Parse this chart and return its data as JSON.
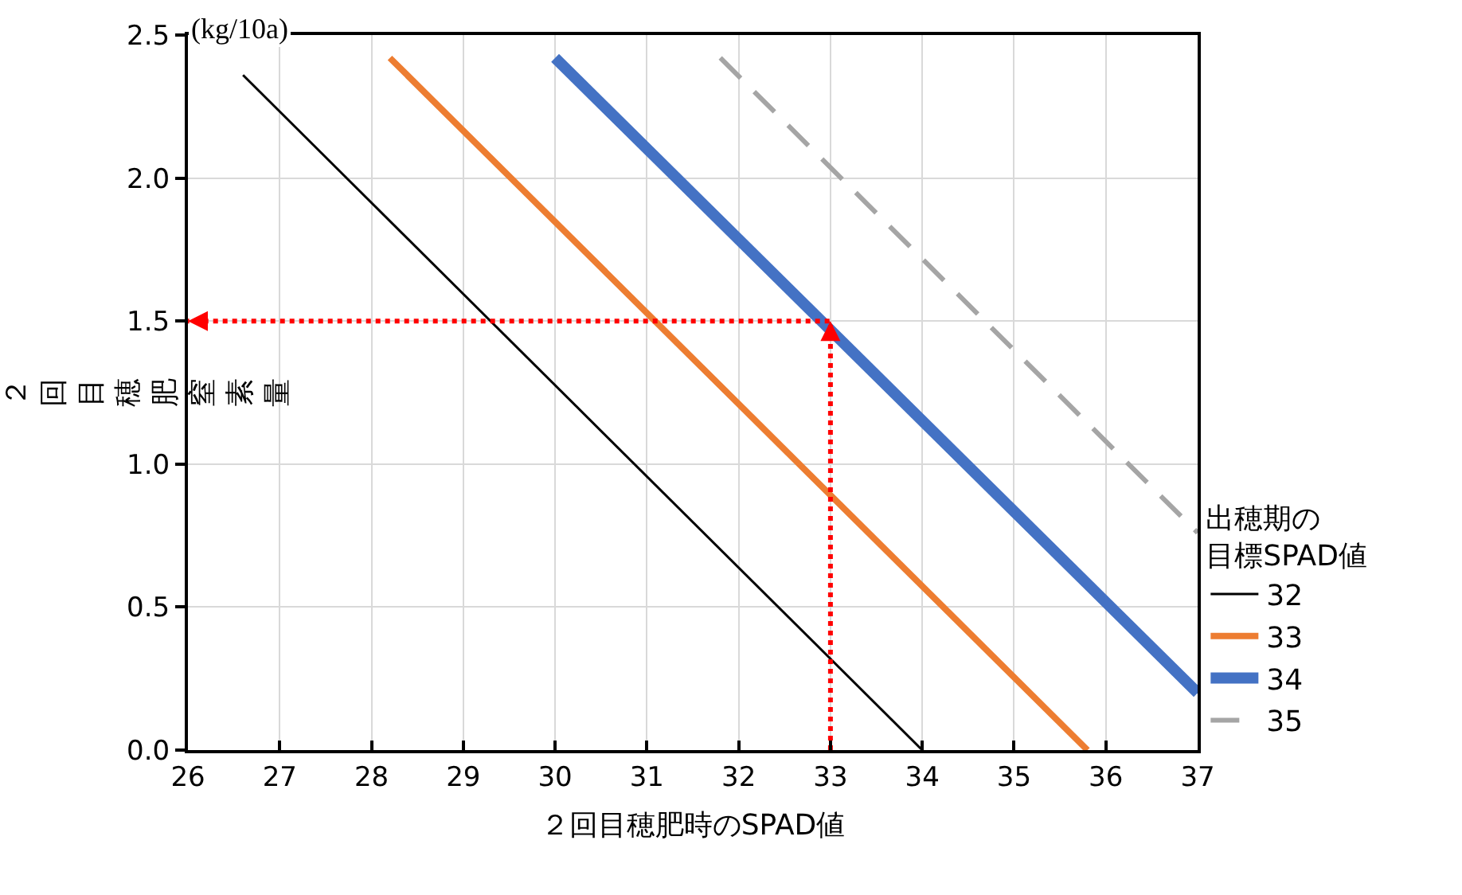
{
  "chart_data": {
    "type": "line",
    "xlabel": "２回目穂肥時のSPAD値",
    "ylabel": "２回目穂肥窒素量",
    "legend_title": "出穂期の目標SPAD値",
    "annotations": [
      "(kg/10a)"
    ],
    "xlim": [
      26,
      37
    ],
    "xticks": [
      26,
      27,
      28,
      29,
      30,
      31,
      32,
      33,
      34,
      35,
      36,
      37
    ],
    "ylim": [
      0,
      2.5
    ],
    "yticks": [
      {
        "value": 0,
        "label": "0.0"
      },
      0.5,
      {
        "value": 1,
        "label": "1.0"
      },
      1.5,
      {
        "value": 2,
        "label": "2.0"
      },
      2.5
    ],
    "grid": true,
    "legend": "right",
    "marker": "none",
    "series": [
      {
        "name": "32",
        "color": "#000000",
        "x": [
          26.6,
          34
        ],
        "values": [
          2.36,
          0
        ],
        "line_style": "solid"
      },
      {
        "name": "33",
        "color": "#ed7d31",
        "x": [
          28.2,
          35.8
        ],
        "values": [
          2.42,
          0
        ],
        "line_style": "solid"
      },
      {
        "name": "34",
        "color": "#4472c4",
        "x": [
          30,
          37
        ],
        "values": [
          2.42,
          0.2
        ],
        "line_style": "solid"
      },
      {
        "name": "35",
        "color": "#a5a5a5",
        "x": [
          31.8,
          37
        ],
        "values": [
          2.42,
          0.76
        ],
        "line_style": "dashed"
      },
      {
        "color": "#ff0000",
        "x": [
          33,
          33,
          26
        ],
        "values": [
          0,
          1.5,
          1.5
        ],
        "line_style": "dotted"
      }
    ]
  }
}
